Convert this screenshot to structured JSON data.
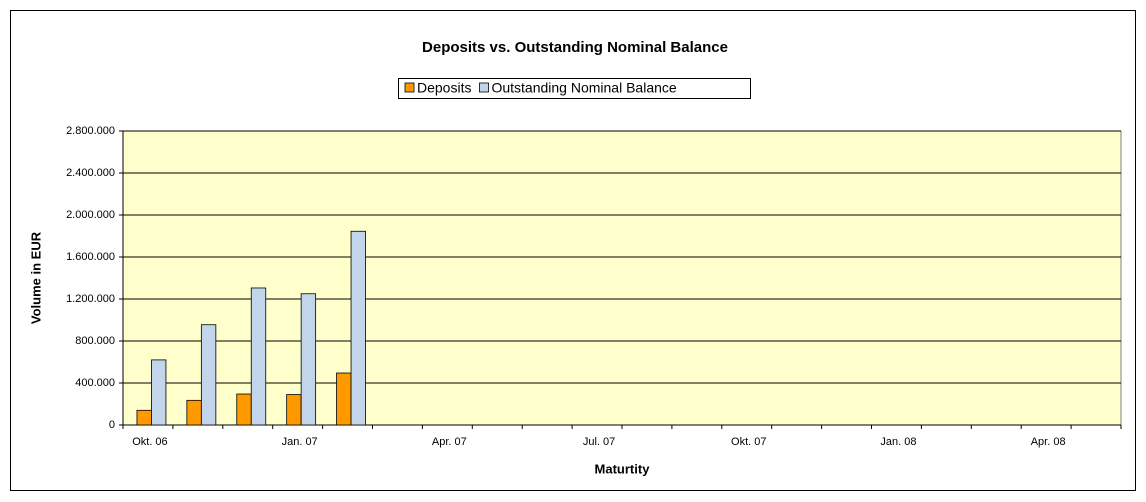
{
  "chart_data": {
    "type": "bar",
    "title": "Deposits vs. Outstanding Nominal Balance",
    "xlabel": "Maturtity",
    "ylabel": "Volume in EUR",
    "categories": [
      "Okt. 06",
      null,
      null,
      "Jan. 07",
      null,
      null,
      "Apr. 07",
      null,
      null,
      "Jul. 07",
      null,
      null,
      "Okt. 07",
      null,
      null,
      "Jan. 08",
      null,
      null,
      "Apr. 08",
      null
    ],
    "series": [
      {
        "name": "Deposits",
        "color": "#ff9900",
        "values": [
          140000,
          235000,
          295000,
          290000,
          495000,
          null,
          null,
          null,
          null,
          null,
          null,
          null,
          null,
          null,
          null,
          null,
          null,
          null,
          null,
          null
        ]
      },
      {
        "name": "Outstanding Nominal Balance",
        "color": "#c3d5ea",
        "values": [
          620000,
          955000,
          1305000,
          1250000,
          1845000,
          null,
          null,
          null,
          null,
          null,
          null,
          null,
          null,
          null,
          null,
          null,
          null,
          null,
          null,
          null
        ]
      }
    ],
    "ylim": [
      0,
      2800000
    ],
    "yticks": [
      0,
      {
        "value": 400000,
        "label": "400.000"
      },
      {
        "value": 800000,
        "label": "800.000"
      },
      {
        "value": 1200000,
        "label": "1.200.000"
      },
      {
        "value": 1600000,
        "label": "1.600.000"
      },
      {
        "value": 2000000,
        "label": "2.000.000"
      },
      {
        "value": 2400000,
        "label": "2.400.000"
      },
      {
        "value": 2800000,
        "label": "2.800.000"
      }
    ],
    "grid": true,
    "legend": "top"
  }
}
